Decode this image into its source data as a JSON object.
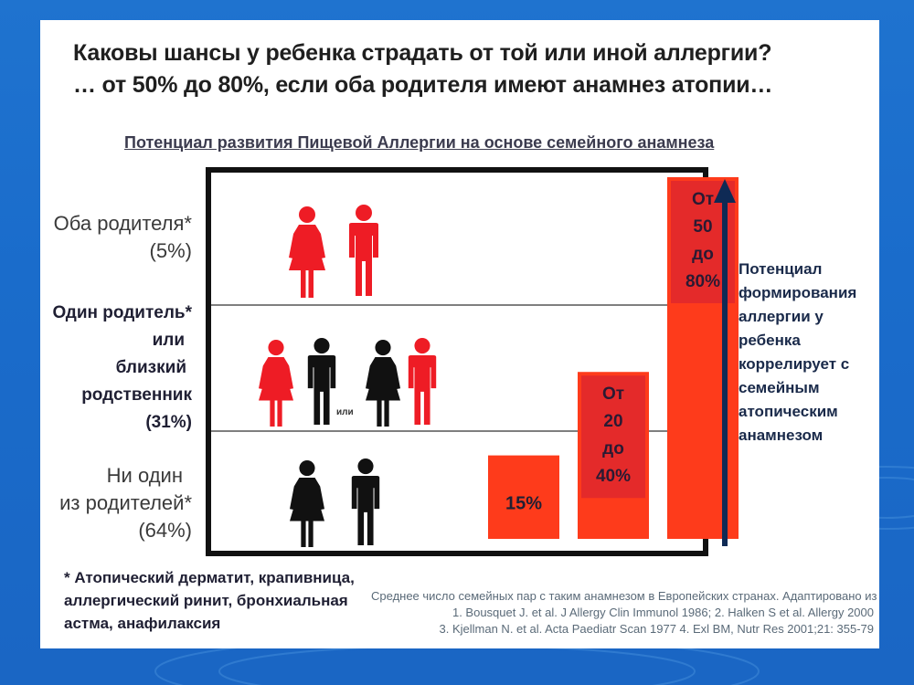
{
  "slide": {
    "title_line1": "Каковы шансы у ребенка страдать от той или иной аллергии?",
    "title_line2": "… от 50% до 80%, если оба родителя имеют анамнез атопии…",
    "subtitle": "Потенциал развития Пищевой Аллергии на основе семейного анамнеза"
  },
  "rows": {
    "both": {
      "line1": "Оба родителя*",
      "line2": "(5%)"
    },
    "one": {
      "line1": "Один родитель*",
      "line2": "или",
      "line3": "близкий",
      "line4": "родственник",
      "line5": "(31%)"
    },
    "none": {
      "line1": "Ни один",
      "line2": "из родителей*",
      "line3": "(64%)"
    },
    "or_label": "или"
  },
  "arrow_caption": {
    "line1": "Потенциал",
    "line2": "формирования",
    "line3": "аллергии у",
    "line4": "ребенка",
    "line5": "коррелирует с",
    "line6": "семейным",
    "line7": "атопическим",
    "line8": "анамнезом"
  },
  "footnote": {
    "line1": "* Атопический дерматит, крапивница,",
    "line2": "аллергический ринит, бронхиальная",
    "line3": "астма, анафилаксия"
  },
  "source": {
    "line1": "Среднее число семейных пар с таким анамнезом в Европейских странах. Адаптировано из",
    "line2": "1. Bousquet J. et al. J Allergy Clin Immunol 1986; 2. Halken S et al. Allergy 2000",
    "line3": "3. Kjellman N. et al. Acta Paediatr Scan 1977 4. Exl BM, Nutr Res 2001;21: 355-79"
  },
  "colors": {
    "bar": "#fe3b1b",
    "bar_label_bg": "#e42a2a",
    "figure_red": "#ee1c25",
    "figure_black": "#111111",
    "arrow": "#0f2a55"
  },
  "chart_data": {
    "type": "bar",
    "categories": [
      "Ни один из родителей*",
      "Один родитель* или близкий родственник",
      "Оба родителя*"
    ],
    "series": [
      {
        "values": [
          15,
          30,
          65
        ],
        "ranges": [
          [
            15,
            15
          ],
          [
            20,
            40
          ],
          [
            50,
            80
          ]
        ]
      }
    ],
    "labels": {
      "bar1": {
        "line1": "15%"
      },
      "bar2": {
        "line1": "От",
        "line2": "20",
        "line3": "до",
        "line4": "40%"
      },
      "bar3": {
        "line1": "От",
        "line2": "50",
        "line3": "до",
        "line4": "80%"
      }
    },
    "xlabel": "",
    "ylabel": "",
    "grid": false
  }
}
